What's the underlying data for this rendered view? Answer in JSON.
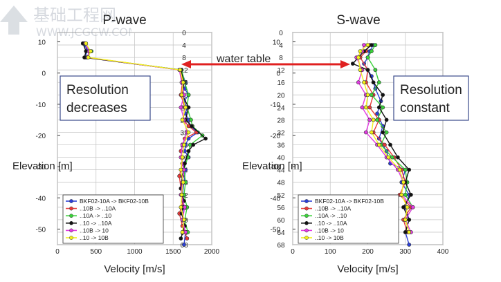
{
  "chart_data": [
    {
      "type": "line",
      "title": "P-wave",
      "xlabel": "Velocity [m/s]",
      "ylabel": "Elevation [m]",
      "xlim": [
        0,
        2000
      ],
      "x_ticks": [
        "0",
        "500",
        "1000",
        "1500",
        "2000"
      ],
      "left_ticks": [
        "10",
        "0",
        "-10",
        "-20",
        "-30",
        "-40",
        "-50"
      ],
      "right_ticks": [
        "0",
        "4",
        "8",
        "12",
        "16",
        "20",
        "24",
        "28",
        "32",
        "36",
        "40",
        "44",
        "48",
        "52",
        "56",
        "60",
        "64",
        "68"
      ],
      "annotation": "Resolution\ndecreases",
      "legend_position": "bottom-left",
      "grid": true,
      "series": [
        {
          "name": "BKF02-10A -> BKF02-10B",
          "color": "#2b3fd6",
          "values": [
            [
              330,
              3.5
            ],
            [
              390,
              5.5
            ],
            [
              360,
              8
            ],
            [
              1600,
              12
            ],
            [
              1660,
              16
            ],
            [
              1650,
              18
            ],
            [
              1700,
              20
            ],
            [
              1640,
              22
            ],
            [
              1680,
              24
            ],
            [
              1660,
              26
            ],
            [
              1700,
              28
            ],
            [
              1720,
              30
            ],
            [
              1820,
              32
            ],
            [
              1700,
              34
            ],
            [
              1660,
              36
            ],
            [
              1650,
              38
            ],
            [
              1700,
              40
            ],
            [
              1620,
              42
            ],
            [
              1660,
              44
            ],
            [
              1640,
              48
            ],
            [
              1620,
              52
            ],
            [
              1640,
              56
            ],
            [
              1620,
              60
            ],
            [
              1660,
              64
            ],
            [
              1640,
              68
            ]
          ]
        },
        {
          "name": "..10B -> ..10A",
          "color": "#e83a3a",
          "values": [
            [
              350,
              3.5
            ],
            [
              420,
              6
            ],
            [
              380,
              8
            ],
            [
              1590,
              12
            ],
            [
              1620,
              16
            ],
            [
              1600,
              20
            ],
            [
              1650,
              24
            ],
            [
              1630,
              28
            ],
            [
              1700,
              30
            ],
            [
              1800,
              32
            ],
            [
              1650,
              34
            ],
            [
              1600,
              38
            ],
            [
              1620,
              42
            ],
            [
              1580,
              46
            ],
            [
              1600,
              50
            ],
            [
              1630,
              54
            ],
            [
              1580,
              58
            ],
            [
              1620,
              62
            ],
            [
              1680,
              66
            ]
          ]
        },
        {
          "name": "..10A -> ..10",
          "color": "#39d139",
          "values": [
            [
              340,
              3.5
            ],
            [
              440,
              6
            ],
            [
              370,
              8
            ],
            [
              1610,
              12
            ],
            [
              1650,
              16
            ],
            [
              1700,
              20
            ],
            [
              1680,
              24
            ],
            [
              1730,
              28
            ],
            [
              1750,
              30
            ],
            [
              1880,
              33
            ],
            [
              1720,
              36
            ],
            [
              1690,
              40
            ],
            [
              1640,
              44
            ],
            [
              1660,
              48
            ],
            [
              1640,
              52
            ],
            [
              1680,
              56
            ],
            [
              1650,
              60
            ],
            [
              1690,
              64
            ]
          ]
        },
        {
          "name": "..10 -> ..10A",
          "color": "#111111",
          "values": [
            [
              330,
              3.5
            ],
            [
              370,
              6
            ],
            [
              350,
              8
            ],
            [
              1600,
              12
            ],
            [
              1640,
              16
            ],
            [
              1620,
              20
            ],
            [
              1700,
              24
            ],
            [
              1660,
              28
            ],
            [
              1740,
              30
            ],
            [
              1920,
              34
            ],
            [
              1760,
              36
            ],
            [
              1700,
              38
            ],
            [
              1650,
              42
            ],
            [
              1620,
              46
            ],
            [
              1600,
              50
            ],
            [
              1640,
              54
            ],
            [
              1610,
              58
            ],
            [
              1650,
              62
            ],
            [
              1600,
              66
            ]
          ]
        },
        {
          "name": "..10B -> 10",
          "color": "#e23ae2",
          "values": [
            [
              360,
              3.5
            ],
            [
              410,
              6
            ],
            [
              390,
              8
            ],
            [
              1580,
              12
            ],
            [
              1610,
              16
            ],
            [
              1640,
              20
            ],
            [
              1600,
              24
            ],
            [
              1640,
              28
            ],
            [
              1680,
              32
            ],
            [
              1620,
              36
            ],
            [
              1600,
              40
            ],
            [
              1640,
              44
            ],
            [
              1620,
              48
            ],
            [
              1600,
              52
            ],
            [
              1650,
              56
            ],
            [
              1620,
              60
            ],
            [
              1660,
              64
            ]
          ]
        },
        {
          "name": "..10 -> 10B",
          "color": "#f2f21a",
          "values": [
            [
              370,
              3.5
            ],
            [
              430,
              6
            ],
            [
              400,
              8
            ],
            [
              1590,
              12
            ],
            [
              1630,
              16
            ],
            [
              1610,
              20
            ],
            [
              1660,
              24
            ],
            [
              1620,
              28
            ],
            [
              1700,
              32
            ],
            [
              1640,
              36
            ],
            [
              1620,
              40
            ],
            [
              1600,
              44
            ],
            [
              1630,
              48
            ],
            [
              1610,
              52
            ],
            [
              1600,
              56
            ],
            [
              1640,
              60
            ],
            [
              1620,
              64
            ]
          ]
        }
      ]
    },
    {
      "type": "line",
      "title": "S-wave",
      "xlabel": "Velocity [m/s]",
      "ylabel": "Elevation [m]",
      "xlim": [
        0,
        400
      ],
      "x_ticks": [
        "0",
        "100",
        "200",
        "300",
        "400"
      ],
      "left_ticks": [
        "10",
        "0",
        "-10",
        "-20",
        "-30",
        "-40",
        "-50"
      ],
      "right_ticks": [
        "0",
        "4",
        "8",
        "12",
        "16",
        "20",
        "24",
        "28",
        "32",
        "36",
        "40",
        "44",
        "48",
        "52",
        "56",
        "60",
        "64",
        "68"
      ],
      "annotation": "Resolution\nconstant",
      "legend_position": "bottom-left",
      "grid": true,
      "series": [
        {
          "name": "BKF02-10A -> BKF02-10B",
          "color": "#2b3fd6",
          "values": [
            [
              215,
              4
            ],
            [
              205,
              6
            ],
            [
              200,
              8
            ],
            [
              190,
              10
            ],
            [
              210,
              14
            ],
            [
              220,
              18
            ],
            [
              235,
              22
            ],
            [
              225,
              26
            ],
            [
              240,
              30
            ],
            [
              230,
              34
            ],
            [
              250,
              38
            ],
            [
              260,
              42
            ],
            [
              300,
              44
            ],
            [
              290,
              48
            ],
            [
              310,
              52
            ],
            [
              300,
              56
            ],
            [
              310,
              60
            ],
            [
              300,
              64
            ],
            [
              310,
              68
            ]
          ]
        },
        {
          "name": "..10B -> ..10A",
          "color": "#e83a3a",
          "values": [
            [
              205,
              4
            ],
            [
              195,
              6
            ],
            [
              180,
              8
            ],
            [
              200,
              12
            ],
            [
              195,
              16
            ],
            [
              215,
              20
            ],
            [
              205,
              24
            ],
            [
              230,
              28
            ],
            [
              215,
              32
            ],
            [
              245,
              36
            ],
            [
              270,
              40
            ],
            [
              290,
              44
            ],
            [
              300,
              48
            ],
            [
              285,
              52
            ],
            [
              315,
              56
            ],
            [
              295,
              60
            ],
            [
              305,
              64
            ]
          ]
        },
        {
          "name": "..10A -> ..10",
          "color": "#39d139",
          "values": [
            [
              220,
              4
            ],
            [
              210,
              6
            ],
            [
              200,
              8
            ],
            [
              220,
              12
            ],
            [
              230,
              16
            ],
            [
              210,
              20
            ],
            [
              240,
              24
            ],
            [
              225,
              28
            ],
            [
              250,
              32
            ],
            [
              235,
              36
            ],
            [
              265,
              40
            ],
            [
              300,
              44
            ],
            [
              305,
              48
            ],
            [
              300,
              52
            ],
            [
              320,
              56
            ],
            [
              300,
              60
            ],
            [
              310,
              64
            ]
          ]
        },
        {
          "name": "..10 -> ..10A",
          "color": "#111111",
          "values": [
            [
              210,
              4
            ],
            [
              190,
              6
            ],
            [
              175,
              8
            ],
            [
              160,
              10
            ],
            [
              200,
              12
            ],
            [
              215,
              16
            ],
            [
              240,
              20
            ],
            [
              230,
              24
            ],
            [
              250,
              28
            ],
            [
              240,
              32
            ],
            [
              260,
              36
            ],
            [
              280,
              40
            ],
            [
              310,
              44
            ],
            [
              300,
              48
            ],
            [
              315,
              52
            ],
            [
              295,
              56
            ],
            [
              310,
              60
            ],
            [
              300,
              64
            ]
          ]
        },
        {
          "name": "..10B -> 10",
          "color": "#e23ae2",
          "values": [
            [
              190,
              4
            ],
            [
              185,
              6
            ],
            [
              170,
              8
            ],
            [
              185,
              12
            ],
            [
              175,
              16
            ],
            [
              195,
              20
            ],
            [
              185,
              24
            ],
            [
              205,
              28
            ],
            [
              195,
              32
            ],
            [
              225,
              36
            ],
            [
              250,
              40
            ],
            [
              280,
              44
            ],
            [
              295,
              48
            ],
            [
              290,
              52
            ],
            [
              320,
              56
            ],
            [
              300,
              60
            ],
            [
              315,
              64
            ]
          ]
        },
        {
          "name": "..10 -> 10B",
          "color": "#f2f21a",
          "values": [
            [
              200,
              4
            ],
            [
              180,
              6
            ],
            [
              175,
              8
            ],
            [
              180,
              12
            ],
            [
              190,
              16
            ],
            [
              200,
              20
            ],
            [
              195,
              24
            ],
            [
              215,
              28
            ],
            [
              210,
              32
            ],
            [
              230,
              36
            ],
            [
              255,
              40
            ],
            [
              285,
              44
            ],
            [
              295,
              48
            ],
            [
              290,
              52
            ],
            [
              305,
              56
            ],
            [
              300,
              60
            ],
            [
              310,
              64
            ]
          ]
        }
      ]
    }
  ],
  "water_table_label": "water table",
  "accent_color": "#e02020",
  "watermark": {
    "text_cn": "基础工程网",
    "url": "WWW.JCGCW.COM"
  }
}
